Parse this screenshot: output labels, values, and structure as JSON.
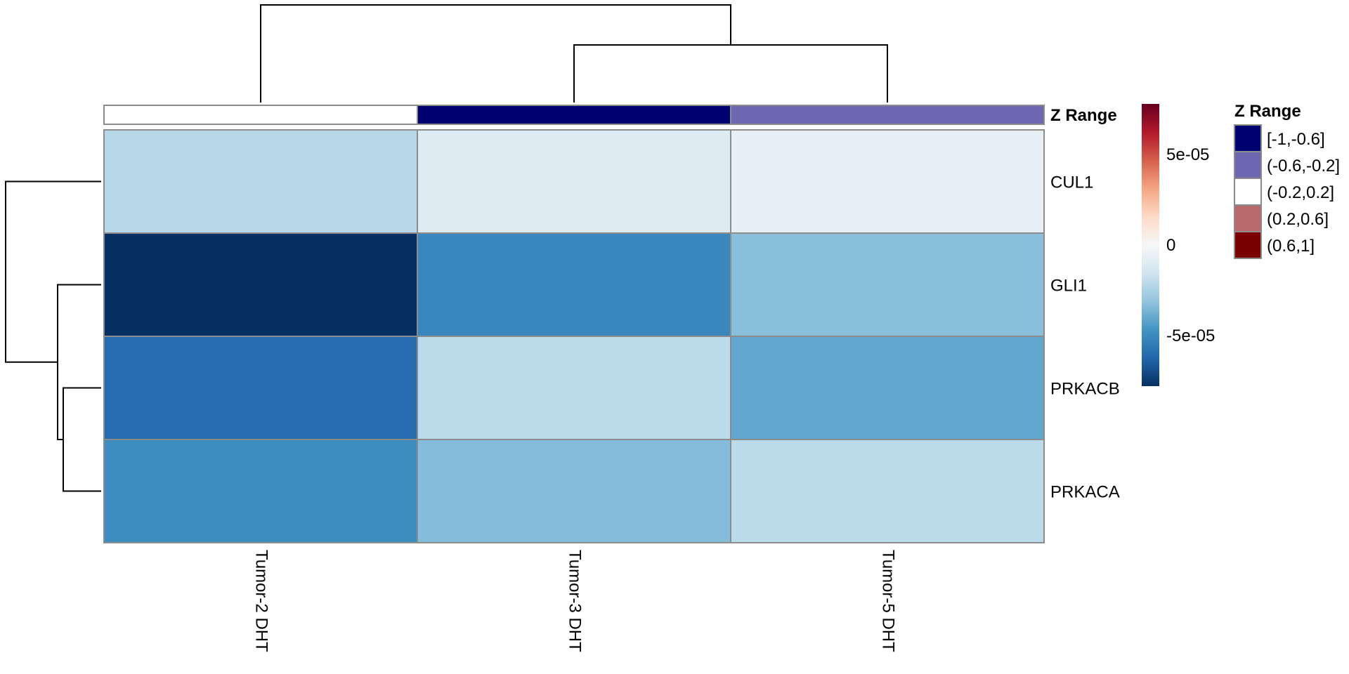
{
  "chart_data": {
    "type": "heatmap",
    "columns": [
      "Tumor-2 DHT",
      "Tumor-3 DHT",
      "Tumor-5 DHT"
    ],
    "rows": [
      "CUL1",
      "GLI1",
      "PRKACB",
      "PRKACA"
    ],
    "values": [
      [
        -2.2e-05,
        -1e-05,
        -7e-06
      ],
      [
        -7.8e-05,
        -5.1e-05,
        -3.3e-05
      ],
      [
        -6e-05,
        -2.1e-05,
        -4.1e-05
      ],
      [
        -4.9e-05,
        -3.4e-05,
        -2.1e-05
      ]
    ],
    "color_scale": {
      "min": -7.8e-05,
      "max": 7.8e-05,
      "stops": [
        "#053061",
        "#2166AC",
        "#4393C3",
        "#92C5DE",
        "#D1E5F0",
        "#F7F7F7",
        "#FDDBC7",
        "#F4A582",
        "#D6604D",
        "#B2182B",
        "#67001F"
      ],
      "ticks": [
        {
          "value": 5e-05,
          "label": "5e-05"
        },
        {
          "value": 0,
          "label": "0"
        },
        {
          "value": -5e-05,
          "label": "-5e-05"
        }
      ]
    },
    "column_annotation": {
      "name": "Z Range",
      "values": [
        "(-0.2,0.2]",
        "[-1,-0.6]",
        "(-0.6,-0.2]"
      ]
    },
    "annotation_legend": {
      "title": "Z Range",
      "items": [
        {
          "label": "[-1,-0.6]",
          "color": "#000070"
        },
        {
          "label": "(-0.6,-0.2]",
          "color": "#6E68B2"
        },
        {
          "label": "(-0.2,0.2]",
          "color": "#FFFFFF"
        },
        {
          "label": "(0.2,0.6]",
          "color": "#B86A6A"
        },
        {
          "label": "(0.6,1]",
          "color": "#7A0000"
        }
      ]
    },
    "column_dendrogram": {
      "merges": [
        [
          1,
          2
        ],
        [
          0,
          "12"
        ]
      ]
    },
    "row_dendrogram": {
      "merges": [
        [
          2,
          3
        ],
        [
          1,
          "23"
        ],
        [
          0,
          "123"
        ]
      ]
    },
    "grid": false
  }
}
